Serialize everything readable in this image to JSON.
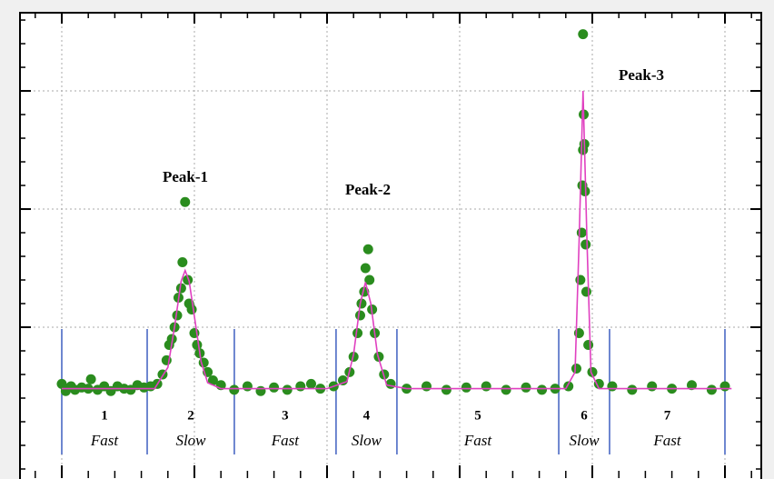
{
  "chart_data": {
    "type": "scatter",
    "xlim": [
      -0.315,
      5.274
    ],
    "ylim": [
      -0.277,
      3.662
    ],
    "xticks": [
      0,
      1,
      2,
      3,
      4,
      5
    ],
    "yticks": [
      1,
      2,
      3
    ],
    "grid": true,
    "points": {
      "color": "#2a8c1e",
      "x": [
        0,
        0.03,
        0.07,
        0.1,
        0.15,
        0.2,
        0.22,
        0.27,
        0.32,
        0.37,
        0.42,
        0.47,
        0.52,
        0.57,
        0.62,
        0.67,
        0.72,
        0.76,
        0.79,
        0.81,
        0.83,
        0.85,
        0.87,
        0.88,
        0.9,
        0.91,
        0.93,
        0.95,
        0.96,
        0.98,
        1.0,
        1.02,
        1.04,
        1.07,
        1.1,
        1.14,
        1.2,
        1.3,
        1.4,
        1.5,
        1.6,
        1.7,
        1.8,
        1.88,
        1.95,
        2.05,
        2.12,
        2.17,
        2.2,
        2.23,
        2.25,
        2.26,
        2.28,
        2.29,
        2.31,
        2.32,
        2.34,
        2.36,
        2.39,
        2.43,
        2.48,
        2.6,
        2.75,
        2.9,
        3.05,
        3.2,
        3.35,
        3.5,
        3.62,
        3.72,
        3.82,
        3.88,
        3.9,
        3.91,
        3.92,
        3.925,
        3.93,
        3.935,
        3.94,
        3.945,
        3.95,
        3.955,
        3.93,
        3.97,
        4.0,
        4.05,
        4.15,
        4.3,
        4.45,
        4.6,
        4.75,
        4.9,
        5.0
      ],
      "y": [
        0.52,
        0.46,
        0.5,
        0.47,
        0.49,
        0.48,
        0.56,
        0.47,
        0.5,
        0.46,
        0.5,
        0.48,
        0.47,
        0.51,
        0.49,
        0.5,
        0.52,
        0.6,
        0.72,
        0.85,
        0.9,
        1.0,
        1.1,
        1.25,
        1.33,
        1.55,
        2.06,
        1.4,
        1.2,
        1.15,
        0.95,
        0.85,
        0.78,
        0.7,
        0.62,
        0.55,
        0.51,
        0.47,
        0.5,
        0.46,
        0.49,
        0.47,
        0.5,
        0.52,
        0.48,
        0.5,
        0.55,
        0.62,
        0.75,
        0.95,
        1.1,
        1.2,
        1.3,
        1.5,
        1.66,
        1.4,
        1.15,
        0.95,
        0.75,
        0.6,
        0.52,
        0.48,
        0.5,
        0.47,
        0.49,
        0.5,
        0.47,
        0.49,
        0.47,
        0.48,
        0.5,
        0.65,
        0.95,
        1.4,
        1.8,
        2.2,
        2.5,
        2.8,
        2.55,
        2.15,
        1.7,
        1.3,
        3.48,
        0.85,
        0.62,
        0.52,
        0.5,
        0.47,
        0.5,
        0.48,
        0.51,
        0.47,
        0.5
      ]
    },
    "fit": {
      "color": "#e040c0",
      "x": [
        0,
        0.5,
        0.7,
        0.8,
        0.85,
        0.9,
        0.93,
        0.96,
        1.0,
        1.05,
        1.1,
        1.2,
        1.5,
        2.0,
        2.15,
        2.2,
        2.25,
        2.29,
        2.33,
        2.38,
        2.45,
        2.6,
        3.0,
        3.5,
        3.8,
        3.87,
        3.9,
        3.93,
        3.96,
        3.99,
        4.05,
        4.5,
        5.05
      ],
      "y": [
        0.48,
        0.48,
        0.48,
        0.66,
        1.0,
        1.39,
        1.48,
        1.39,
        1.09,
        0.71,
        0.53,
        0.48,
        0.48,
        0.48,
        0.54,
        0.77,
        1.2,
        1.38,
        1.2,
        0.77,
        0.51,
        0.48,
        0.48,
        0.48,
        0.48,
        0.62,
        1.71,
        3.0,
        1.71,
        0.62,
        0.48,
        0.48,
        0.48
      ]
    },
    "boundaries": {
      "color": "#3f5fc0",
      "x": [
        0,
        0.644,
        1.301,
        2.068,
        2.527,
        3.747,
        4.13,
        5.0
      ]
    },
    "regions": [
      {
        "number": "1",
        "mode": "Fast"
      },
      {
        "number": "2",
        "mode": "Slow"
      },
      {
        "number": "3",
        "mode": "Fast"
      },
      {
        "number": "4",
        "mode": "Slow"
      },
      {
        "number": "5",
        "mode": "Fast"
      },
      {
        "number": "6",
        "mode": "Slow"
      },
      {
        "number": "7",
        "mode": "Fast"
      }
    ],
    "annotations": [
      "Peak-1",
      "Peak-2",
      "Peak-3"
    ]
  }
}
